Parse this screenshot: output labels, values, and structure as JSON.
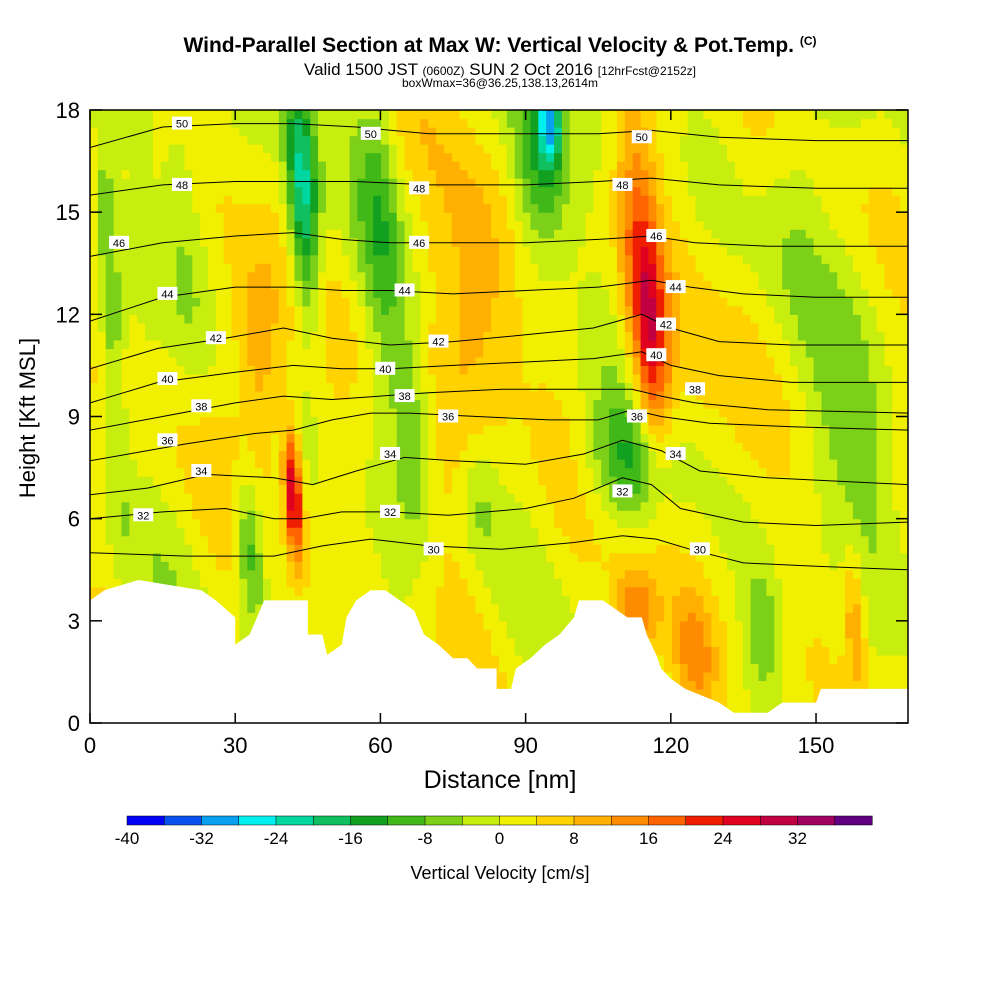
{
  "title": {
    "main": "Wind-Parallel Section at Max W: Vertical Velocity & Pot.Temp.",
    "copyright": "(C)",
    "valid_a": "Valid 1500 JST",
    "valid_z": "(0600Z)",
    "valid_b": "SUN 2 Oct 2016",
    "valid_c": "[12hrFcst@2152z]",
    "subline": "boxWmax=36@36.25,138.13,2614m"
  },
  "chart_data": {
    "type": "heatmap",
    "xlabel": "Distance [nm]",
    "ylabel": "Height [Kft MSL]",
    "xlim": [
      0,
      169
    ],
    "ylim": [
      0,
      18
    ],
    "x_ticks": [
      0,
      30,
      60,
      90,
      120,
      150
    ],
    "y_ticks": [
      0,
      3,
      6,
      9,
      12,
      15,
      18
    ],
    "colorbar": {
      "label": "Vertical Velocity [cm/s]",
      "tick_labels": [
        "-40",
        "-32",
        "-24",
        "-16",
        "-8",
        "0",
        "8",
        "16",
        "24",
        "32"
      ],
      "levels": [
        -40,
        -36,
        -32,
        -28,
        -24,
        -20,
        -16,
        -12,
        -8,
        -4,
        0,
        4,
        8,
        12,
        16,
        20,
        24,
        28,
        32,
        36
      ],
      "colors": [
        "#0000f5",
        "#0a52f0",
        "#0aa0f0",
        "#00f0f0",
        "#00d6a0",
        "#10c060",
        "#12a020",
        "#40b818",
        "#7cd018",
        "#c8ee10",
        "#f0f000",
        "#ffd200",
        "#ffb000",
        "#ff8c00",
        "#ff6400",
        "#f01e00",
        "#e00020",
        "#c00040",
        "#a00060",
        "#600080"
      ]
    },
    "terrain_kft": [
      [
        0,
        3.6
      ],
      [
        3,
        3.9
      ],
      [
        10,
        4.2
      ],
      [
        23,
        3.9
      ],
      [
        26,
        3.6
      ],
      [
        30,
        3.1
      ],
      [
        30,
        2.3
      ],
      [
        33,
        2.6
      ],
      [
        36,
        3.6
      ],
      [
        45,
        3.6
      ],
      [
        45,
        2.6
      ],
      [
        48,
        2.6
      ],
      [
        49,
        2.0
      ],
      [
        52,
        2.3
      ],
      [
        53,
        3.1
      ],
      [
        55,
        3.6
      ],
      [
        58,
        3.9
      ],
      [
        61,
        3.9
      ],
      [
        64,
        3.6
      ],
      [
        67,
        3.3
      ],
      [
        69,
        2.6
      ],
      [
        72,
        2.3
      ],
      [
        75,
        1.9
      ],
      [
        78,
        1.9
      ],
      [
        80,
        1.6
      ],
      [
        84,
        1.6
      ],
      [
        84,
        1.0
      ],
      [
        87,
        1.0
      ],
      [
        88,
        1.6
      ],
      [
        91,
        1.9
      ],
      [
        94,
        2.3
      ],
      [
        97,
        2.6
      ],
      [
        100,
        3.1
      ],
      [
        101,
        3.6
      ],
      [
        106,
        3.6
      ],
      [
        109,
        3.3
      ],
      [
        111,
        3.1
      ],
      [
        114,
        3.1
      ],
      [
        115,
        2.6
      ],
      [
        117,
        2.0
      ],
      [
        118,
        1.6
      ],
      [
        120,
        1.3
      ],
      [
        123,
        1.0
      ],
      [
        130,
        0.6
      ],
      [
        133,
        0.3
      ],
      [
        140,
        0.3
      ],
      [
        143,
        0.6
      ],
      [
        150,
        0.6
      ],
      [
        151,
        1.0
      ],
      [
        169,
        1.0
      ]
    ],
    "velocity_features": [
      {
        "x": 42,
        "y": 6.7,
        "sx": 1.2,
        "sy": 1.3,
        "w": 30
      },
      {
        "x": 35,
        "y": 10.5,
        "sx": 4,
        "sy": 2.4,
        "w": 13
      },
      {
        "x": 44,
        "y": 15.5,
        "sx": 2.2,
        "sy": 2.6,
        "w": -24
      },
      {
        "x": 33,
        "y": 5.2,
        "sx": 2.0,
        "sy": 1.6,
        "w": -14
      },
      {
        "x": 116,
        "y": 11,
        "sx": 2.6,
        "sy": 2.4,
        "w": 20
      },
      {
        "x": 113,
        "y": 14.5,
        "sx": 3,
        "sy": 3,
        "w": 12
      },
      {
        "x": 93,
        "y": 16.5,
        "sx": 4,
        "sy": 2,
        "w": -16
      },
      {
        "x": 95,
        "y": 17.6,
        "sx": 1.6,
        "sy": 0.8,
        "w": -22
      },
      {
        "x": 111,
        "y": 7.6,
        "sx": 6,
        "sy": 1.3,
        "w": -12
      },
      {
        "x": 67,
        "y": 8.5,
        "sx": 3,
        "sy": 2.4,
        "w": -9
      },
      {
        "x": 60,
        "y": 14.5,
        "sx": 3,
        "sy": 3.5,
        "w": -9
      },
      {
        "x": 139,
        "y": 2.7,
        "sx": 2.5,
        "sy": 1.2,
        "w": -8
      },
      {
        "x": 4,
        "y": 13,
        "sx": 1.6,
        "sy": 5,
        "w": -9
      },
      {
        "x": 82,
        "y": 13,
        "sx": 5,
        "sy": 3,
        "w": 8
      },
      {
        "x": 80,
        "y": 6.5,
        "sx": 3,
        "sy": 1.4,
        "w": -7
      },
      {
        "x": 125,
        "y": 2.0,
        "sx": 3,
        "sy": 1.2,
        "w": 10
      },
      {
        "x": 158,
        "y": 3.0,
        "sx": 1.5,
        "sy": 1.5,
        "w": 11
      },
      {
        "x": 113,
        "y": 3.2,
        "sx": 3,
        "sy": 1.0,
        "w": 14
      },
      {
        "x": 155,
        "y": 8.5,
        "sx": 8,
        "sy": 3,
        "w": -6
      },
      {
        "x": 145,
        "y": 15.5,
        "sx": 5,
        "sy": 3,
        "w": -6
      },
      {
        "x": 20,
        "y": 14,
        "sx": 3,
        "sy": 3,
        "w": -6
      },
      {
        "x": 75,
        "y": 10,
        "sx": 6,
        "sy": 4,
        "w": 4
      },
      {
        "x": 135,
        "y": 11,
        "sx": 6,
        "sy": 5,
        "w": 4
      }
    ],
    "isentropes": [
      {
        "label": "30",
        "pts": [
          [
            0,
            5.0
          ],
          [
            20,
            4.9
          ],
          [
            38,
            4.9
          ],
          [
            48,
            5.2
          ],
          [
            58,
            5.4
          ],
          [
            70,
            5.2
          ],
          [
            85,
            5.1
          ],
          [
            100,
            5.3
          ],
          [
            110,
            5.5
          ],
          [
            117,
            5.4
          ],
          [
            124,
            5.1
          ],
          [
            135,
            4.7
          ],
          [
            150,
            4.6
          ],
          [
            169,
            4.5
          ]
        ],
        "at": [
          [
            71,
            5.1
          ],
          [
            126,
            5.1
          ]
        ]
      },
      {
        "label": "32",
        "pts": [
          [
            0,
            6.0
          ],
          [
            15,
            6.2
          ],
          [
            28,
            6.3
          ],
          [
            38,
            6.0
          ],
          [
            44,
            6.0
          ],
          [
            52,
            6.2
          ],
          [
            62,
            6.2
          ],
          [
            74,
            6.1
          ],
          [
            90,
            6.3
          ],
          [
            100,
            6.6
          ],
          [
            110,
            7.2
          ],
          [
            116,
            7.0
          ],
          [
            122,
            6.3
          ],
          [
            135,
            5.9
          ],
          [
            150,
            5.8
          ],
          [
            169,
            5.9
          ]
        ],
        "at": [
          [
            11,
            6.1
          ],
          [
            62,
            6.2
          ],
          [
            110,
            6.8
          ]
        ]
      },
      {
        "label": "34",
        "pts": [
          [
            0,
            6.7
          ],
          [
            12,
            6.9
          ],
          [
            24,
            7.3
          ],
          [
            38,
            7.2
          ],
          [
            46,
            7.0
          ],
          [
            55,
            7.4
          ],
          [
            65,
            7.8
          ],
          [
            75,
            7.7
          ],
          [
            90,
            7.6
          ],
          [
            102,
            7.9
          ],
          [
            110,
            8.3
          ],
          [
            118,
            8.0
          ],
          [
            126,
            7.4
          ],
          [
            140,
            7.2
          ],
          [
            169,
            7.0
          ]
        ],
        "at": [
          [
            23,
            7.4
          ],
          [
            62,
            7.9
          ],
          [
            121,
            7.9
          ]
        ]
      },
      {
        "label": "36",
        "pts": [
          [
            0,
            7.7
          ],
          [
            20,
            8.2
          ],
          [
            34,
            8.5
          ],
          [
            42,
            8.6
          ],
          [
            50,
            8.9
          ],
          [
            58,
            9.1
          ],
          [
            66,
            9.1
          ],
          [
            80,
            9.0
          ],
          [
            95,
            8.9
          ],
          [
            105,
            8.9
          ],
          [
            112,
            9.2
          ],
          [
            118,
            9.0
          ],
          [
            128,
            8.8
          ],
          [
            145,
            8.7
          ],
          [
            169,
            8.6
          ]
        ],
        "at": [
          [
            16,
            8.3
          ],
          [
            74,
            9.0
          ],
          [
            113,
            9.0
          ]
        ]
      },
      {
        "label": "38",
        "pts": [
          [
            0,
            8.6
          ],
          [
            15,
            9.0
          ],
          [
            30,
            9.4
          ],
          [
            40,
            9.6
          ],
          [
            50,
            9.5
          ],
          [
            60,
            9.6
          ],
          [
            70,
            9.7
          ],
          [
            85,
            9.8
          ],
          [
            100,
            9.8
          ],
          [
            112,
            9.8
          ],
          [
            118,
            9.6
          ],
          [
            125,
            9.4
          ],
          [
            140,
            9.2
          ],
          [
            169,
            9.1
          ]
        ],
        "at": [
          [
            23,
            9.3
          ],
          [
            65,
            9.6
          ],
          [
            125,
            9.8
          ]
        ]
      },
      {
        "label": "40",
        "pts": [
          [
            0,
            9.4
          ],
          [
            14,
            10.0
          ],
          [
            30,
            10.3
          ],
          [
            42,
            10.5
          ],
          [
            52,
            10.4
          ],
          [
            62,
            10.4
          ],
          [
            75,
            10.5
          ],
          [
            90,
            10.6
          ],
          [
            104,
            10.7
          ],
          [
            114,
            10.9
          ],
          [
            120,
            10.5
          ],
          [
            130,
            10.2
          ],
          [
            145,
            10.0
          ],
          [
            169,
            10.0
          ]
        ],
        "at": [
          [
            16,
            10.1
          ],
          [
            61,
            10.4
          ],
          [
            117,
            10.8
          ]
        ]
      },
      {
        "label": "42",
        "pts": [
          [
            0,
            10.4
          ],
          [
            14,
            11.0
          ],
          [
            28,
            11.3
          ],
          [
            40,
            11.6
          ],
          [
            50,
            11.3
          ],
          [
            62,
            11.1
          ],
          [
            75,
            11.2
          ],
          [
            90,
            11.4
          ],
          [
            104,
            11.6
          ],
          [
            114,
            12.0
          ],
          [
            120,
            11.6
          ],
          [
            130,
            11.2
          ],
          [
            145,
            11.1
          ],
          [
            169,
            11.1
          ]
        ],
        "at": [
          [
            26,
            11.3
          ],
          [
            72,
            11.2
          ],
          [
            119,
            11.7
          ]
        ]
      },
      {
        "label": "44",
        "pts": [
          [
            0,
            11.8
          ],
          [
            15,
            12.5
          ],
          [
            30,
            12.8
          ],
          [
            42,
            12.8
          ],
          [
            52,
            12.7
          ],
          [
            62,
            12.7
          ],
          [
            75,
            12.6
          ],
          [
            90,
            12.7
          ],
          [
            105,
            12.8
          ],
          [
            116,
            13.0
          ],
          [
            124,
            12.8
          ],
          [
            135,
            12.6
          ],
          [
            150,
            12.5
          ],
          [
            169,
            12.5
          ]
        ],
        "at": [
          [
            16,
            12.6
          ],
          [
            65,
            12.7
          ],
          [
            121,
            12.8
          ]
        ]
      },
      {
        "label": "46",
        "pts": [
          [
            0,
            13.7
          ],
          [
            15,
            14.1
          ],
          [
            30,
            14.3
          ],
          [
            42,
            14.4
          ],
          [
            52,
            14.2
          ],
          [
            62,
            14.1
          ],
          [
            75,
            14.1
          ],
          [
            90,
            14.1
          ],
          [
            105,
            14.2
          ],
          [
            116,
            14.3
          ],
          [
            125,
            14.1
          ],
          [
            140,
            14.0
          ],
          [
            169,
            14.0
          ]
        ],
        "at": [
          [
            6,
            14.1
          ],
          [
            68,
            14.1
          ],
          [
            117,
            14.3
          ]
        ]
      },
      {
        "label": "48",
        "pts": [
          [
            0,
            15.5
          ],
          [
            15,
            15.8
          ],
          [
            30,
            15.9
          ],
          [
            42,
            15.9
          ],
          [
            55,
            15.9
          ],
          [
            70,
            15.8
          ],
          [
            90,
            15.8
          ],
          [
            105,
            15.9
          ],
          [
            116,
            16.0
          ],
          [
            130,
            15.8
          ],
          [
            150,
            15.7
          ],
          [
            169,
            15.7
          ]
        ],
        "at": [
          [
            19,
            15.8
          ],
          [
            68,
            15.7
          ],
          [
            110,
            15.8
          ]
        ]
      },
      {
        "label": "50",
        "pts": [
          [
            0,
            16.9
          ],
          [
            15,
            17.5
          ],
          [
            30,
            17.6
          ],
          [
            42,
            17.6
          ],
          [
            55,
            17.5
          ],
          [
            70,
            17.3
          ],
          [
            90,
            17.3
          ],
          [
            105,
            17.3
          ],
          [
            116,
            17.4
          ],
          [
            130,
            17.2
          ],
          [
            150,
            17.1
          ],
          [
            169,
            17.1
          ]
        ],
        "at": [
          [
            19,
            17.6
          ],
          [
            58,
            17.3
          ],
          [
            114,
            17.2
          ]
        ]
      }
    ]
  }
}
